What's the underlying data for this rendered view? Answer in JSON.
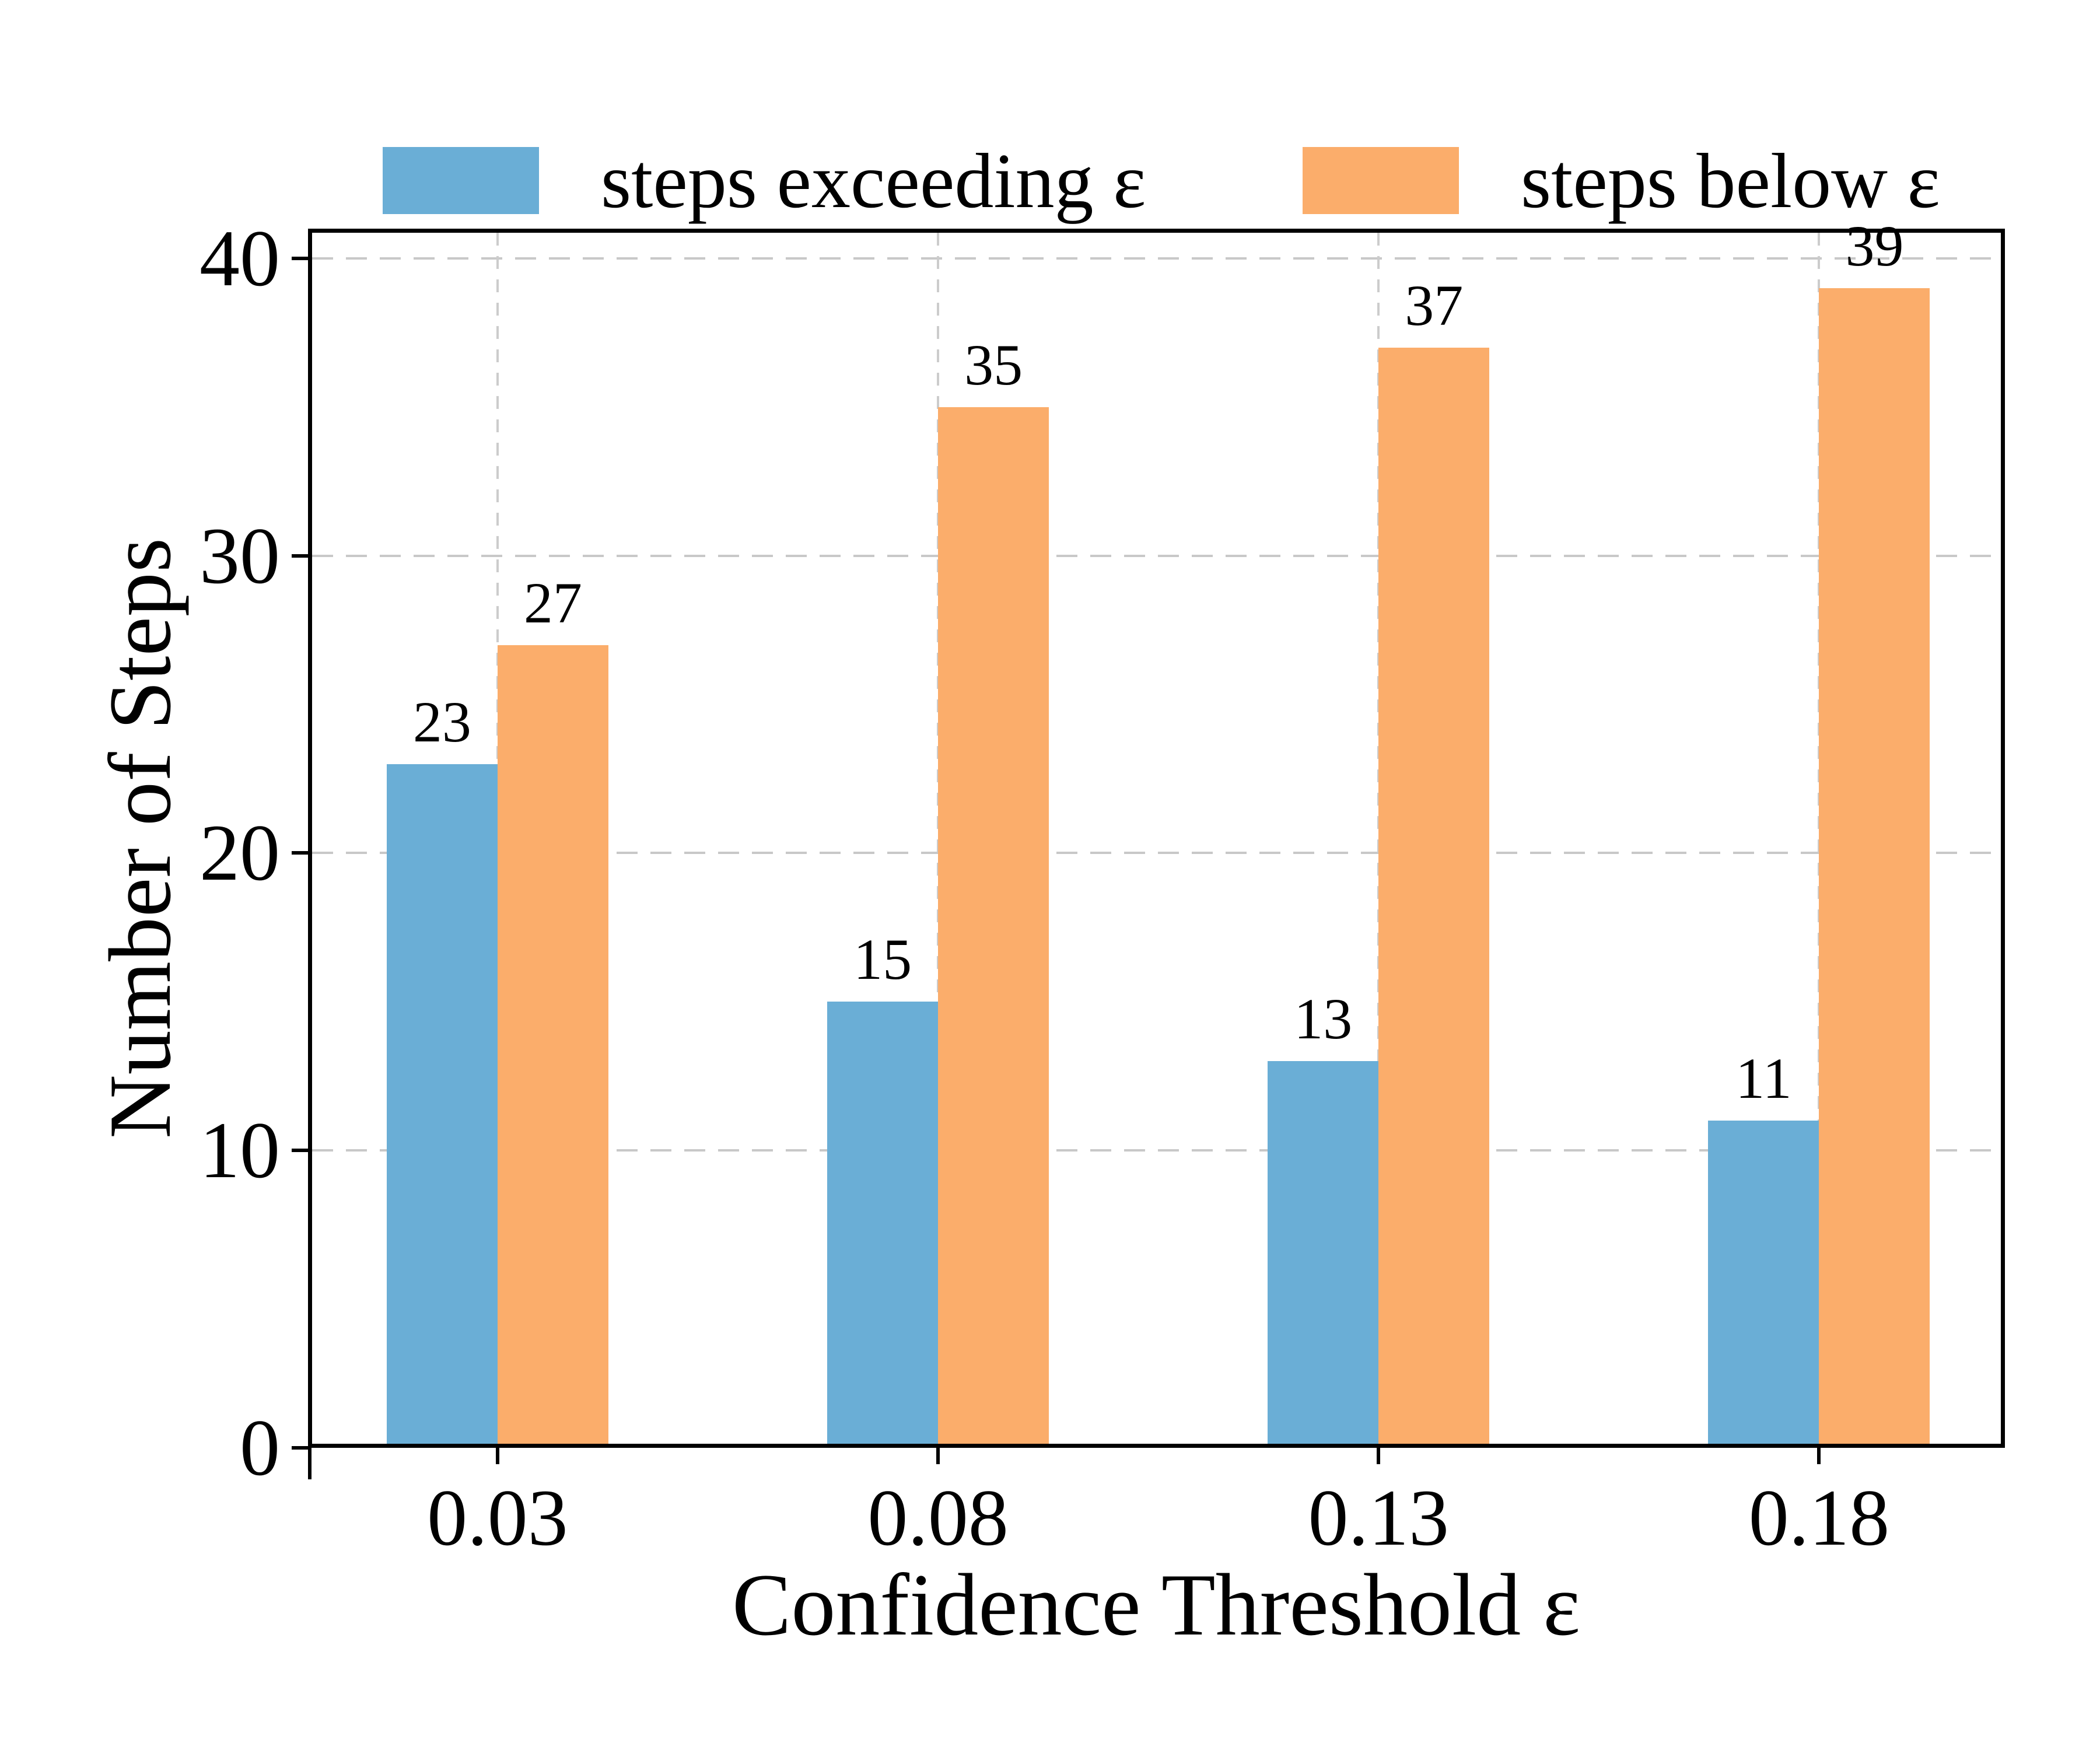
{
  "chart_data": {
    "type": "bar",
    "categories": [
      "0.03",
      "0.08",
      "0.13",
      "0.18"
    ],
    "series": [
      {
        "name": "steps exceeding ε",
        "color": "#6aaed6",
        "values": [
          23,
          15,
          13,
          11
        ]
      },
      {
        "name": "steps below ε",
        "color": "#fbad6b",
        "values": [
          27,
          35,
          37,
          39
        ]
      }
    ],
    "title": "",
    "xlabel": "Confidence Threshold ε",
    "ylabel": "Number of Steps",
    "ylim": [
      0,
      41
    ],
    "yticks": [
      0,
      10,
      20,
      30,
      40
    ],
    "grid": true,
    "grid_color": "#c8c8c8",
    "axis_color": "#000000",
    "text_color": "#000000",
    "legend_position": "top",
    "bar_value_labels": true
  }
}
